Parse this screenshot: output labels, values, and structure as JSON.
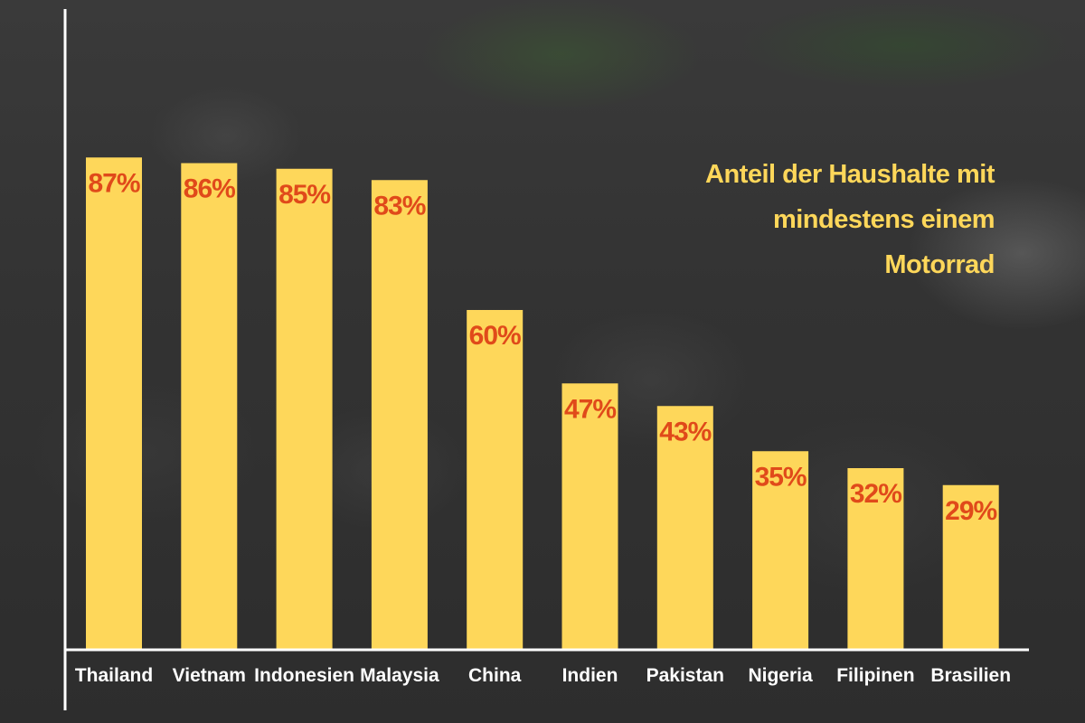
{
  "chart_data": {
    "type": "bar",
    "title": "Anteil der Haushalte mit mindestens einem Motorrad",
    "categories": [
      "Thailand",
      "Vietnam",
      "Indonesien",
      "Malaysia",
      "China",
      "Indien",
      "Pakistan",
      "Nigeria",
      "Filipinen",
      "Brasilien"
    ],
    "values": [
      87,
      86,
      85,
      83,
      60,
      47,
      43,
      35,
      32,
      29
    ],
    "value_labels": [
      "87%",
      "86%",
      "85%",
      "83%",
      "60%",
      "47%",
      "43%",
      "35%",
      "32%",
      "29%"
    ],
    "xlabel": "",
    "ylabel": "",
    "ylim": [
      0,
      100
    ],
    "grid": false,
    "colors": {
      "bar": "#fed75a",
      "value_label": "#e04a1a",
      "title": "#fed75a",
      "axis": "#ffffff"
    }
  }
}
